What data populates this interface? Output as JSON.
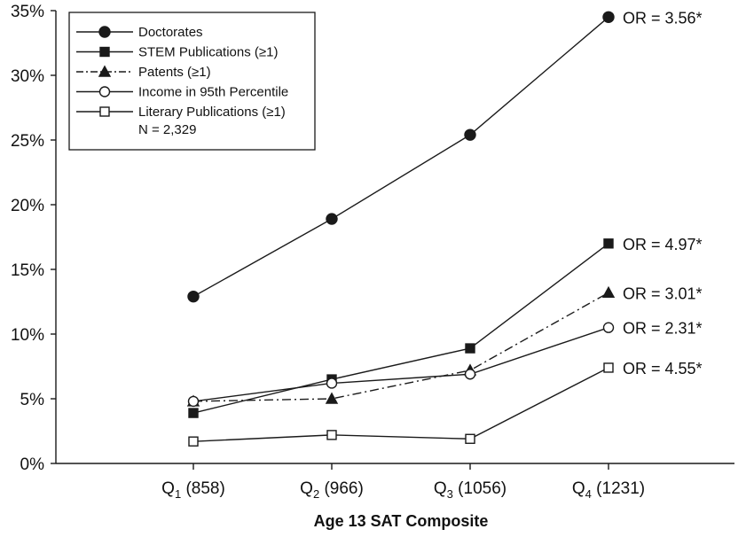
{
  "chart_data": {
    "type": "line",
    "title": "",
    "xlabel": "Age 13 SAT Composite",
    "ylabel": "",
    "ylim": [
      0,
      35
    ],
    "y_ticks": [
      "0%",
      "5%",
      "10%",
      "15%",
      "20%",
      "25%",
      "30%",
      "35%"
    ],
    "categories": [
      {
        "q": "Q",
        "sub": "1",
        "rest": " (858)"
      },
      {
        "q": "Q",
        "sub": "2",
        "rest": " (966)"
      },
      {
        "q": "Q",
        "sub": "3",
        "rest": " (1056)"
      },
      {
        "q": "Q",
        "sub": "4",
        "rest": " (1231)"
      }
    ],
    "series": [
      {
        "name": "Doctorates",
        "marker": "filled-circle",
        "line": "solid",
        "values": [
          12.9,
          18.9,
          25.4,
          34.5
        ],
        "annotation": "OR = 3.56*"
      },
      {
        "name": "STEM Publications (≥1)",
        "marker": "filled-square",
        "line": "solid",
        "values": [
          3.9,
          6.5,
          8.9,
          17.0
        ],
        "annotation": "OR = 4.97*"
      },
      {
        "name": "Patents (≥1)",
        "marker": "filled-triangle",
        "line": "dash-dot",
        "values": [
          4.8,
          5.0,
          7.2,
          13.2
        ],
        "annotation": "OR = 3.01*"
      },
      {
        "name": "Income in 95th Percentile",
        "marker": "open-circle",
        "line": "solid",
        "values": [
          4.8,
          6.2,
          6.9,
          10.5
        ],
        "annotation": "OR = 2.31*"
      },
      {
        "name": "Literary Publications (≥1)",
        "marker": "open-square",
        "line": "solid",
        "values": [
          1.7,
          2.2,
          1.9,
          7.4
        ],
        "annotation": "OR = 4.55*"
      }
    ],
    "legend_note": "N = 2,329",
    "legend_position": "top-left",
    "grid": false,
    "colors": {
      "line": "#1a1a1a",
      "background": "#ffffff"
    }
  }
}
